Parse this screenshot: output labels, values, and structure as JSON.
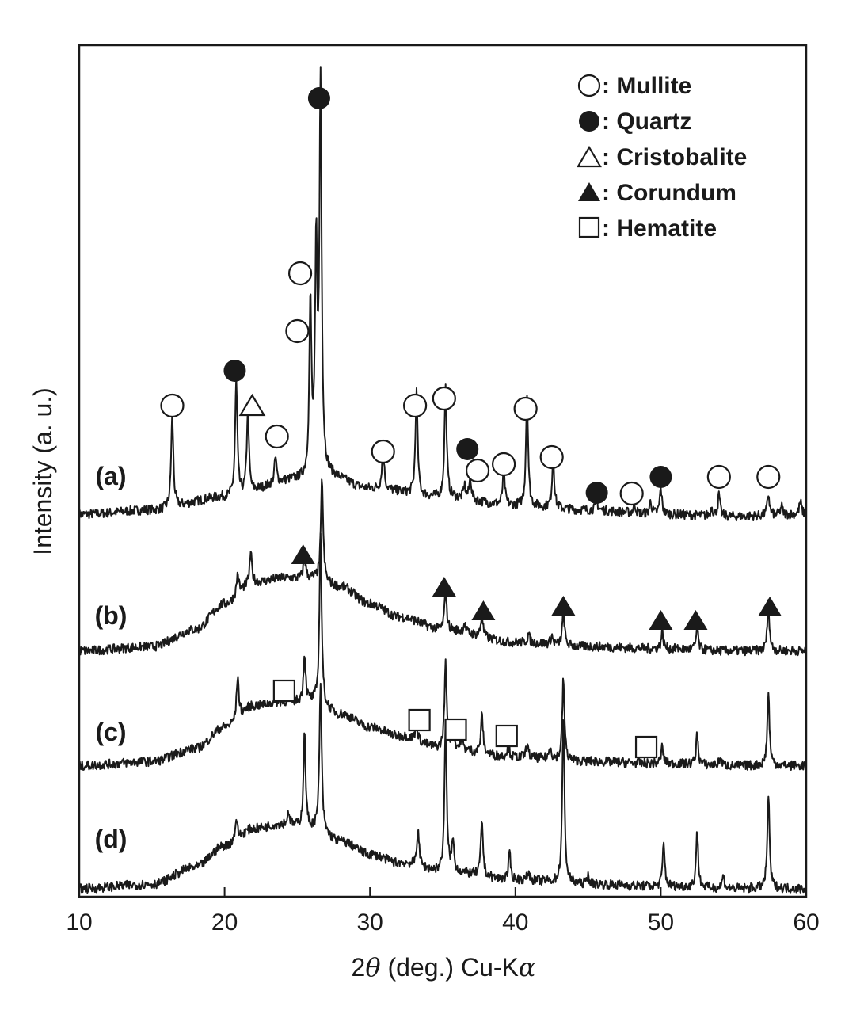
{
  "chart_data": {
    "type": "line",
    "xlabel": "2θ (deg.) Cu-Kα",
    "xlabel_parts": [
      "2",
      "θ",
      " (deg.) Cu-K",
      "α"
    ],
    "ylabel": "Intensity (a. u.)",
    "xlim": [
      10,
      60
    ],
    "x_ticks": [
      10,
      20,
      30,
      40,
      50,
      60
    ],
    "grid": false,
    "legend_position": "top-right",
    "legend": [
      {
        "marker": "open-circle",
        "text": ": Mullite"
      },
      {
        "marker": "filled-circle",
        "text": ": Quartz"
      },
      {
        "marker": "open-triangle",
        "text": ": Cristobalite"
      },
      {
        "marker": "filled-triangle",
        "text": ": Corundum"
      },
      {
        "marker": "open-square",
        "text": ": Hematite"
      }
    ],
    "series": [
      {
        "name": "(a)",
        "baseline": [
          [
            10,
            0.02
          ],
          [
            15,
            0.03
          ],
          [
            20,
            0.06
          ],
          [
            25,
            0.1
          ],
          [
            27,
            0.11
          ],
          [
            30,
            0.08
          ],
          [
            35,
            0.06
          ],
          [
            40,
            0.04
          ],
          [
            45,
            0.03
          ],
          [
            50,
            0.02
          ],
          [
            55,
            0.015
          ],
          [
            60,
            0.02
          ]
        ],
        "peaks": [
          [
            16.4,
            0.22
          ],
          [
            20.8,
            0.27
          ],
          [
            21.6,
            0.19
          ],
          [
            23.5,
            0.06
          ],
          [
            25.9,
            0.4
          ],
          [
            26.3,
            0.52
          ],
          [
            26.6,
            0.91
          ],
          [
            30.9,
            0.1
          ],
          [
            33.2,
            0.24
          ],
          [
            35.2,
            0.26
          ],
          [
            36.5,
            0.03
          ],
          [
            36.9,
            0.05
          ],
          [
            39.2,
            0.08
          ],
          [
            40.8,
            0.26
          ],
          [
            42.6,
            0.12
          ],
          [
            45.6,
            0.02
          ],
          [
            48.2,
            0.02
          ],
          [
            49.3,
            0.03
          ],
          [
            50.0,
            0.06
          ],
          [
            53.5,
            0.02
          ],
          [
            54.0,
            0.05
          ],
          [
            57.4,
            0.05
          ],
          [
            58.3,
            0.02
          ],
          [
            59.6,
            0.03
          ]
        ]
      },
      {
        "name": "(b)",
        "baseline": [
          [
            10,
            0.01
          ],
          [
            15,
            0.02
          ],
          [
            18,
            0.06
          ],
          [
            20,
            0.12
          ],
          [
            22,
            0.17
          ],
          [
            24,
            0.18
          ],
          [
            26,
            0.18
          ],
          [
            28,
            0.16
          ],
          [
            30,
            0.12
          ],
          [
            32,
            0.09
          ],
          [
            35,
            0.06
          ],
          [
            40,
            0.03
          ],
          [
            45,
            0.02
          ],
          [
            50,
            0.015
          ],
          [
            55,
            0.01
          ],
          [
            60,
            0.01
          ]
        ],
        "peaks": [
          [
            20.9,
            0.05
          ],
          [
            21.8,
            0.07
          ],
          [
            25.5,
            0.05
          ],
          [
            26.7,
            0.24
          ],
          [
            35.2,
            0.09
          ],
          [
            36.5,
            0.02
          ],
          [
            37.7,
            0.05
          ],
          [
            40.9,
            0.02
          ],
          [
            42.5,
            0.02
          ],
          [
            43.3,
            0.08
          ],
          [
            50.1,
            0.04
          ],
          [
            52.5,
            0.05
          ],
          [
            57.4,
            0.11
          ]
        ]
      },
      {
        "name": "(c)",
        "baseline": [
          [
            10,
            0.01
          ],
          [
            15,
            0.02
          ],
          [
            18,
            0.05
          ],
          [
            20,
            0.1
          ],
          [
            22,
            0.15
          ],
          [
            24,
            0.16
          ],
          [
            26,
            0.16
          ],
          [
            28,
            0.13
          ],
          [
            30,
            0.1
          ],
          [
            32,
            0.08
          ],
          [
            35,
            0.05
          ],
          [
            40,
            0.03
          ],
          [
            45,
            0.02
          ],
          [
            50,
            0.015
          ],
          [
            55,
            0.01
          ],
          [
            60,
            0.01
          ]
        ],
        "peaks": [
          [
            20.9,
            0.1
          ],
          [
            25.5,
            0.11
          ],
          [
            26.6,
            0.4
          ],
          [
            33.2,
            0.04
          ],
          [
            35.2,
            0.2
          ],
          [
            35.7,
            0.05
          ],
          [
            36.3,
            0.03
          ],
          [
            37.7,
            0.09
          ],
          [
            39.5,
            0.03
          ],
          [
            40.8,
            0.03
          ],
          [
            42.4,
            0.03
          ],
          [
            43.3,
            0.19
          ],
          [
            50.1,
            0.04
          ],
          [
            52.5,
            0.07
          ],
          [
            54.1,
            0.02
          ],
          [
            57.4,
            0.17
          ]
        ]
      },
      {
        "name": "(d)",
        "baseline": [
          [
            10,
            0.01
          ],
          [
            15,
            0.02
          ],
          [
            18,
            0.06
          ],
          [
            20,
            0.11
          ],
          [
            22,
            0.15
          ],
          [
            24,
            0.16
          ],
          [
            26,
            0.15
          ],
          [
            28,
            0.12
          ],
          [
            30,
            0.09
          ],
          [
            32,
            0.07
          ],
          [
            35,
            0.05
          ],
          [
            40,
            0.03
          ],
          [
            45,
            0.02
          ],
          [
            50,
            0.015
          ],
          [
            55,
            0.01
          ],
          [
            60,
            0.01
          ]
        ],
        "peaks": [
          [
            20.8,
            0.05
          ],
          [
            24.4,
            0.03
          ],
          [
            25.5,
            0.22
          ],
          [
            26.6,
            0.35
          ],
          [
            33.3,
            0.09
          ],
          [
            35.2,
            0.34
          ],
          [
            35.7,
            0.07
          ],
          [
            37.7,
            0.13
          ],
          [
            39.6,
            0.06
          ],
          [
            40.9,
            0.02
          ],
          [
            43.3,
            0.39
          ],
          [
            45.0,
            0.02
          ],
          [
            50.2,
            0.1
          ],
          [
            52.5,
            0.13
          ],
          [
            54.3,
            0.03
          ],
          [
            57.4,
            0.22
          ]
        ]
      }
    ],
    "phase_markers": [
      {
        "series": "(a)",
        "phase": "Mullite",
        "x": [
          16.4,
          23.6,
          25.0,
          25.2,
          30.9,
          33.1,
          35.1,
          37.4,
          39.2,
          40.7,
          42.5,
          48.0,
          54.0,
          57.4
        ]
      },
      {
        "series": "(a)",
        "phase": "Quartz",
        "x": [
          20.7,
          26.5,
          36.7,
          45.6,
          50.0
        ]
      },
      {
        "series": "(a)",
        "phase": "Cristobalite",
        "x": [
          21.9
        ]
      },
      {
        "series": "(b)",
        "phase": "Corundum",
        "x": [
          25.4,
          35.1,
          37.8,
          43.3,
          50.0,
          52.4,
          57.5
        ]
      },
      {
        "series": "(c)",
        "phase": "Hematite",
        "x": [
          24.1,
          33.4,
          35.9,
          39.4,
          49.0
        ]
      }
    ],
    "colors": {
      "line": "#1a1a1a",
      "background": "#ffffff"
    }
  }
}
